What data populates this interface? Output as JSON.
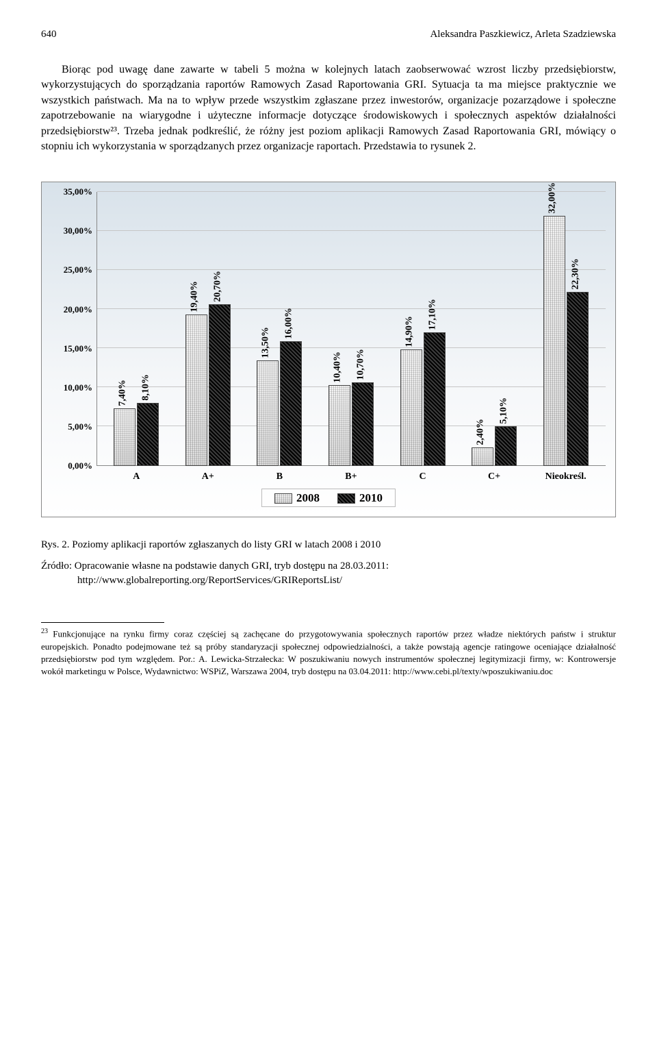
{
  "header": {
    "page_number": "640",
    "authors": "Aleksandra Paszkiewicz, Arleta Szadziewska"
  },
  "body_text": "Biorąc pod uwagę dane zawarte w tabeli 5 można w kolejnych latach zaobserwować wzrost liczby przedsiębiorstw, wykorzystujących do sporządzania raportów Ramowych Zasad Raportowania GRI. Sytuacja ta ma miejsce praktycznie we wszystkich państwach. Ma na to wpływ przede wszystkim zgłaszane przez inwestorów, organizacje pozarządowe i społeczne zapotrzebowanie na wiarygodne i użyteczne informacje dotyczące środowiskowych i społecznych aspektów działalności przedsiębiorstw²³. Trzeba jednak podkreślić, że różny jest poziom aplikacji Ramowych Zasad Raportowania GRI, mówiący o stopniu ich wykorzystania w sporządzanych przez organizacje raportach. Przedstawia to rysunek 2.",
  "chart": {
    "type": "bar",
    "ylim_max": 35,
    "y_ticks": [
      "0,00%",
      "5,00%",
      "10,00%",
      "15,00%",
      "20,00%",
      "25,00%",
      "30,00%",
      "35,00%"
    ],
    "categories": [
      "A",
      "A+",
      "B",
      "B+",
      "C",
      "C+",
      "Nieokreśl."
    ],
    "series": [
      {
        "name": "2008",
        "style": "light",
        "values": [
          7.4,
          19.4,
          13.5,
          10.4,
          14.9,
          2.4,
          32.0
        ],
        "labels": [
          "7,40%",
          "19,40%",
          "13,50%",
          "10,40%",
          "14,90%",
          "2,40%",
          "32,00%"
        ]
      },
      {
        "name": "2010",
        "style": "dark",
        "values": [
          8.1,
          20.7,
          16.0,
          10.7,
          17.1,
          5.1,
          22.3
        ],
        "labels": [
          "8,10%",
          "20,70%",
          "16,00%",
          "10,70%",
          "17,10%",
          "5,10%",
          "22,30%"
        ]
      }
    ]
  },
  "caption": "Rys. 2. Poziomy aplikacji raportów zgłaszanych do listy GRI w latach 2008 i 2010",
  "source": "Źródło: Opracowanie własne na podstawie danych GRI, tryb dostępu na 28.03.2011: http://www.globalreporting.org/ReportServices/GRIReportsList/",
  "footnote": {
    "num": "23",
    "text": "Funkcjonujące na rynku firmy coraz częściej są zachęcane do przygotowywania społecznych raportów przez władze niektórych państw i struktur europejskich. Ponadto podejmowane też są próby standaryzacji społecznej odpowiedzialności, a także powstają agencje ratingowe oceniające działalność przedsiębiorstw pod tym względem. Por.: A. Lewicka-Strzałecka: W poszukiwaniu nowych instrumentów społecznej legitymizacji firmy, w: Kontrowersje wokół marketingu w Polsce, Wydawnictwo: WSPiZ, Warszawa 2004, tryb dostępu na 03.04.2011: http://www.cebi.pl/texty/wposzukiwaniu.doc"
  }
}
